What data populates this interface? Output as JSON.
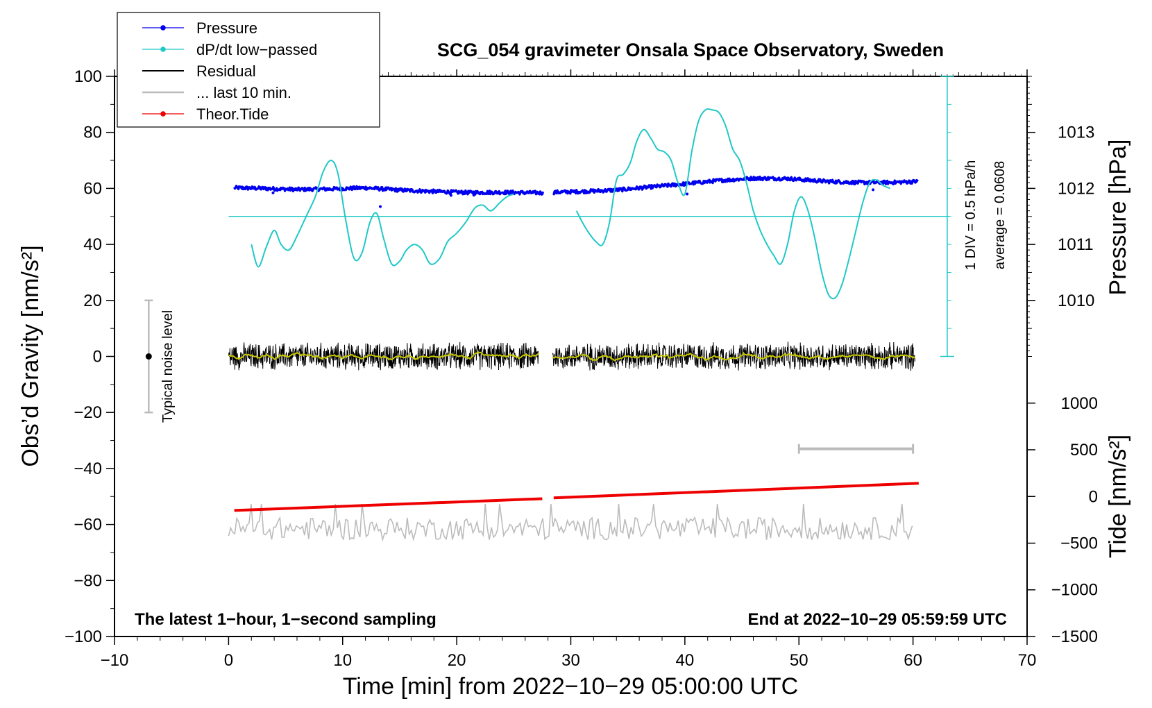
{
  "chart_data": {
    "type": "line",
    "title": "SCG_054 gravimeter Onsala Space Observatory, Sweden",
    "xlabel": "Time [min] from 2022−10−29 05:00:00 UTC",
    "ylabel_left": "Obs’d Gravity [nm/s²]",
    "ylabel_right_upper": "Pressure [hPa]",
    "ylabel_right_lower": "Tide [nm/s²]",
    "xlim": [
      -10,
      70
    ],
    "ylim": [
      -100,
      100
    ],
    "x_ticks": [
      "−10",
      "0",
      "10",
      "20",
      "30",
      "40",
      "50",
      "60",
      "70"
    ],
    "x_tick_values": [
      -10,
      0,
      10,
      20,
      30,
      40,
      50,
      60,
      70
    ],
    "y_ticks": [
      "100",
      "80",
      "60",
      "40",
      "20",
      "0",
      "−20",
      "−40",
      "−60",
      "−80",
      "−100"
    ],
    "y_tick_values": [
      100,
      80,
      60,
      40,
      20,
      0,
      -20,
      -40,
      -60,
      -80,
      -100
    ],
    "pressure_axis": {
      "ticks": [
        "1013",
        "1012",
        "1011",
        "1010"
      ],
      "tick_values": [
        1013,
        1012,
        1011,
        1010
      ],
      "gravity_equivalent": [
        80,
        60,
        40,
        20
      ]
    },
    "tide_axis": {
      "ticks": [
        "1000",
        "500",
        "0",
        "−500",
        "−1000",
        "−1500"
      ],
      "tick_values": [
        1000,
        500,
        0,
        -500,
        -1000,
        -1500
      ],
      "gravity_equivalent": [
        -16.67,
        -33.33,
        -50,
        -66.67,
        -83.33,
        -100
      ]
    },
    "legend": [
      {
        "label": "Pressure",
        "color": "#0000ee",
        "marker": true
      },
      {
        "label": "dP/dt low−passed",
        "color": "#20c8c8",
        "marker": true
      },
      {
        "label": "Residual",
        "color": "#000000",
        "marker": false
      },
      {
        "label": "... last 10 min.",
        "color": "#bbbbbb",
        "marker": false
      },
      {
        "label": "Theor.Tide",
        "color": "#ee0000",
        "marker": true
      }
    ],
    "series": [
      {
        "name": "Pressure",
        "color": "#0000ee",
        "x": [
          0.5,
          3,
          6,
          9,
          12,
          15,
          18,
          21,
          24,
          27.5,
          28.5,
          31,
          34,
          37,
          40,
          43,
          46,
          49,
          52,
          55,
          58,
          60.5
        ],
        "y": [
          60.2,
          60.0,
          59.6,
          59.8,
          60.2,
          59.4,
          58.9,
          58.5,
          58.6,
          58.4,
          58.6,
          58.9,
          59.4,
          60.5,
          61.6,
          62.8,
          63.6,
          63.5,
          62.6,
          62.1,
          62.1,
          62.5
        ]
      },
      {
        "name": "dP/dt low−passed",
        "color": "#20c8c8",
        "segments": [
          {
            "x": [
              2,
              2.6,
              3.3,
              4,
              4.6,
              5.3,
              6,
              6.8,
              7.6,
              8.3,
              9,
              9.6,
              10.3,
              11,
              11.7,
              12.4,
              13,
              13.6,
              14.3,
              15,
              15.6,
              16.3,
              17,
              17.7,
              18.5,
              19.2,
              20,
              20.8,
              21.6,
              22.3,
              23,
              23.8,
              24.4,
              25
            ],
            "y": [
              40,
              32,
              39,
              45,
              40,
              38,
              43,
              50,
              57,
              66,
              70,
              65,
              48,
              35,
              37,
              48,
              51,
              42,
              33,
              34,
              38,
              40,
              38,
              33,
              35,
              41,
              44,
              48,
              53,
              54,
              52,
              55,
              57,
              58
            ]
          },
          {
            "x": [
              30.5,
              31,
              31.6,
              32.2,
              32.8,
              33.4,
              34,
              34.6,
              35.2,
              35.8,
              36.4,
              37,
              37.6,
              38.2,
              38.8,
              39.4,
              40,
              40.6,
              41.2,
              41.8,
              42.4,
              43,
              43.6,
              44.2,
              44.8,
              45.4,
              46,
              46.6,
              47.2,
              47.8,
              48.4,
              49,
              49.6,
              50.2,
              50.8,
              51.4,
              52,
              52.6,
              53.2,
              53.8,
              54.4,
              55,
              55.6,
              56.2,
              56.8,
              57.4,
              58
            ],
            "y": [
              52,
              48,
              44,
              41,
              40,
              48,
              63,
              65,
              69,
              77,
              81,
              78,
              74,
              73,
              70,
              62,
              58,
              73,
              84,
              88,
              88,
              87,
              82,
              74,
              70,
              62,
              52,
              45,
              40,
              36,
              33,
              40,
              52,
              57,
              52,
              42,
              30,
              22,
              21,
              26,
              35,
              45,
              55,
              62,
              63,
              61,
              60
            ]
          }
        ]
      },
      {
        "name": "Residual",
        "color": "#000000",
        "segments": [
          {
            "x_start": 0,
            "x_end": 27.2
          },
          {
            "x_start": 28.4,
            "x_end": 60.2
          }
        ],
        "mean": 0,
        "spread": 5
      },
      {
        "name": "... last 10 min.",
        "color": "#bbbbbb",
        "x_start": 0,
        "x_end": 60,
        "mean": -61.5,
        "spread": 4
      },
      {
        "name": "Theor.Tide",
        "color": "#ee0000",
        "x": [
          0.5,
          27.5,
          28.5,
          60.5
        ],
        "y": [
          -55,
          -50.8,
          -50.5,
          -45.3
        ]
      }
    ],
    "reference_lines": [
      {
        "name": "dP/dt zero line",
        "y": 50,
        "color": "#20c8c8"
      }
    ],
    "scale_bar": {
      "label": "1 DIV = 0.5 hPa/h",
      "average_label": "average = 0.0608",
      "x": 63,
      "y_from": 0,
      "y_to": 100,
      "color": "#20c8c8"
    },
    "noise_bar": {
      "label": "Typical noise level",
      "x": -7,
      "y": 0,
      "y_from": -20,
      "y_to": 20
    },
    "last10_bar": {
      "x_from": 50,
      "x_to": 60,
      "y": -33
    },
    "annotations": [
      {
        "text": "The latest 1−hour, 1−second sampling",
        "position": "bottom-left"
      },
      {
        "text": "End at 2022−10−29 05:59:59 UTC",
        "position": "bottom-right"
      }
    ]
  }
}
